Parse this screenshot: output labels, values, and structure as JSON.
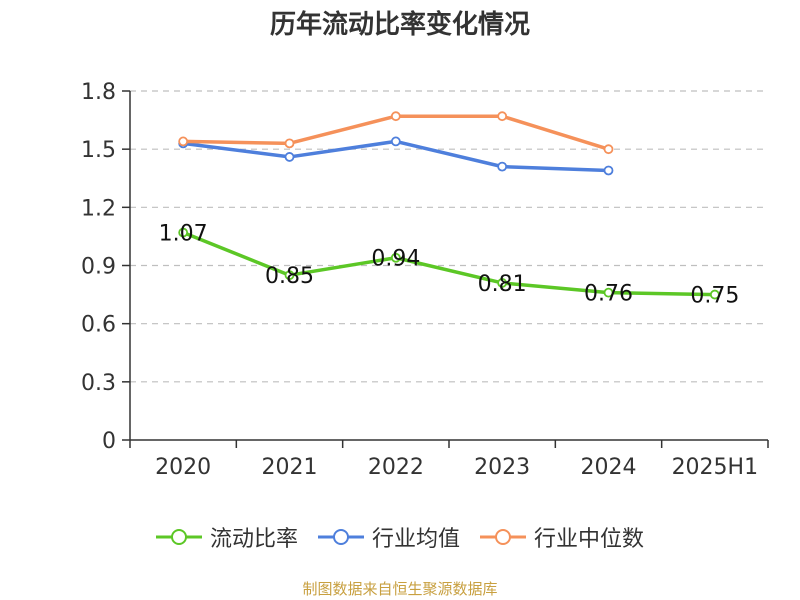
{
  "title": "历年流动比率变化情况",
  "source_note": "制图数据来自恒生聚源数据库",
  "colors": {
    "current_ratio": "#5cc726",
    "industry_avg": "#4e7fdc",
    "industry_median": "#f5915a",
    "grid": "#bfbfbf",
    "axis": "#333333",
    "source": "#c8a040"
  },
  "chart_data": {
    "type": "line",
    "title": "历年流动比率变化情况",
    "xlabel": "",
    "ylabel": "",
    "categories": [
      "2020",
      "2021",
      "2022",
      "2023",
      "2024",
      "2025H1"
    ],
    "ylim": [
      0,
      1.8
    ],
    "yticks": [
      "0",
      "0.3",
      "0.6",
      "0.9",
      "1.2",
      "1.5",
      "1.8"
    ],
    "grid": true,
    "legend_position": "bottom",
    "series": [
      {
        "name": "流动比率",
        "key": "current_ratio",
        "values": [
          1.07,
          0.85,
          0.94,
          0.81,
          0.76,
          0.75
        ],
        "labels": [
          "1.07",
          "0.85",
          "0.94",
          "0.81",
          "0.76",
          "0.75"
        ]
      },
      {
        "name": "行业均值",
        "key": "industry_avg",
        "values": [
          1.53,
          1.46,
          1.54,
          1.41,
          1.39,
          null
        ]
      },
      {
        "name": "行业中位数",
        "key": "industry_median",
        "values": [
          1.54,
          1.53,
          1.67,
          1.67,
          1.5,
          null
        ]
      }
    ]
  }
}
